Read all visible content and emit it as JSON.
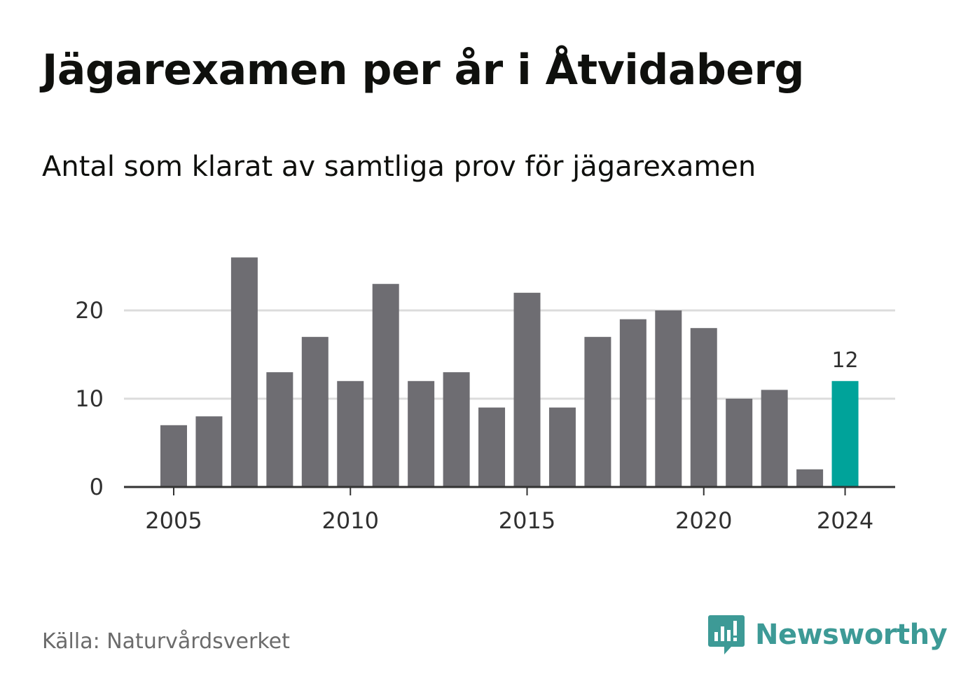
{
  "header": {
    "title": "Jägarexamen per år i Åtvidaberg",
    "subtitle": "Antal som klarat av samtliga prov för jägarexamen"
  },
  "footer": {
    "source": "Källa: Naturvårdsverket",
    "brand": "Newsworthy",
    "brand_icon": "newsworthy-logo-icon"
  },
  "colors": {
    "bar": "#6e6d72",
    "highlight": "#00a39a",
    "grid": "#dcdcdc",
    "axis": "#333333",
    "brand": "#3d9a96"
  },
  "chart_data": {
    "type": "bar",
    "title": "Jägarexamen per år i Åtvidaberg",
    "subtitle": "Antal som klarat av samtliga prov för jägarexamen",
    "categories": [
      2005,
      2006,
      2007,
      2008,
      2009,
      2010,
      2011,
      2012,
      2013,
      2014,
      2015,
      2016,
      2017,
      2018,
      2019,
      2020,
      2021,
      2022,
      2023,
      2024
    ],
    "values": [
      7,
      8,
      26,
      13,
      17,
      12,
      23,
      12,
      13,
      9,
      22,
      9,
      17,
      19,
      20,
      18,
      10,
      11,
      2,
      12
    ],
    "x_ticks": [
      "2005",
      "2010",
      "2015",
      "2020",
      "2024"
    ],
    "y_ticks": [
      0,
      10,
      20
    ],
    "ylim": [
      0,
      26
    ],
    "grid": true,
    "highlight_category": 2024,
    "data_labels": [
      {
        "category": 2024,
        "text": "12"
      }
    ],
    "xlabel": "",
    "ylabel": ""
  }
}
